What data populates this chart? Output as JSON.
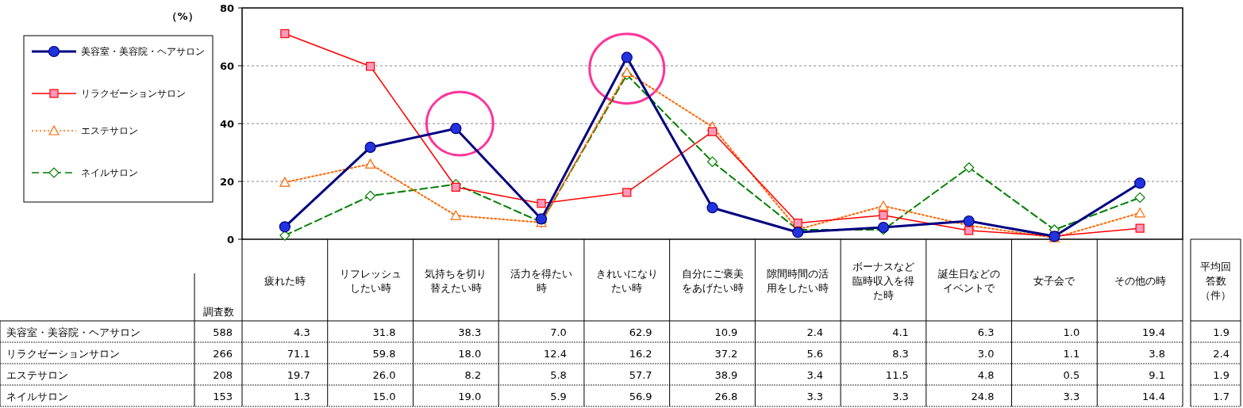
{
  "chart_data": {
    "type": "line",
    "ylabel": "（%）",
    "categories": [
      "疲れた時",
      "リフレッシュしたい時",
      "気持ちを切り替えたい時",
      "活力を得たい時",
      "きれいになりたい時",
      "自分にご褒美をあげたい時",
      "隙間時間の活用をしたい時",
      "ボーナスなど臨時収入を得た時",
      "誕生日などのイベントで",
      "女子会で",
      "その他の時"
    ],
    "series": [
      {
        "name": "美容室・美容院・ヘアサロン",
        "color": "#000080",
        "marker": "circle",
        "line_style": "solid",
        "values": [
          4.3,
          31.8,
          38.3,
          7.0,
          62.9,
          10.9,
          2.4,
          4.1,
          6.3,
          1.0,
          19.4
        ],
        "value_labels": [
          "4.3",
          "31.8",
          "38.3",
          "7.0",
          "62.9",
          "10.9",
          "2.4",
          "4.1",
          "6.3",
          "1.0",
          "19.4"
        ]
      },
      {
        "name": "リラクゼーションサロン",
        "color": "#ff0000",
        "marker": "square",
        "line_style": "solid",
        "values": [
          71.1,
          59.8,
          18.0,
          12.4,
          16.2,
          37.2,
          5.6,
          8.3,
          3.0,
          1.1,
          3.8
        ],
        "value_labels": [
          "71.1",
          "59.8",
          "18.0",
          "12.4",
          "16.2",
          "37.2",
          "5.6",
          "8.3",
          "3.0",
          "1.1",
          "3.8"
        ]
      },
      {
        "name": "エステサロン",
        "color": "#ff6600",
        "marker": "triangle",
        "line_style": "dotted",
        "values": [
          19.7,
          26.0,
          8.2,
          5.8,
          57.7,
          38.9,
          3.4,
          11.5,
          4.8,
          0.5,
          9.1
        ],
        "value_labels": [
          "19.7",
          "26.0",
          "8.2",
          "5.8",
          "57.7",
          "38.9",
          "3.4",
          "11.5",
          "4.8",
          "0.5",
          "9.1"
        ]
      },
      {
        "name": "ネイルサロン",
        "color": "#008000",
        "marker": "diamond",
        "line_style": "dashed",
        "values": [
          1.3,
          15.0,
          19.0,
          5.9,
          56.9,
          26.8,
          3.3,
          3.3,
          24.8,
          3.3,
          14.4
        ],
        "value_labels": [
          "1.3",
          "15.0",
          "19.0",
          "5.9",
          "56.9",
          "26.8",
          "3.3",
          "3.3",
          "24.8",
          "3.3",
          "14.4"
        ]
      }
    ],
    "ylim": [
      0,
      80
    ],
    "yticks": [
      0,
      20,
      40,
      60,
      80
    ],
    "grid": "y",
    "legend": "top left",
    "annotations": [
      "調査数",
      "588",
      "266",
      "208",
      "153",
      "平均回答数（件）",
      "1.9",
      "2.4",
      "1.9",
      "1.7"
    ]
  }
}
